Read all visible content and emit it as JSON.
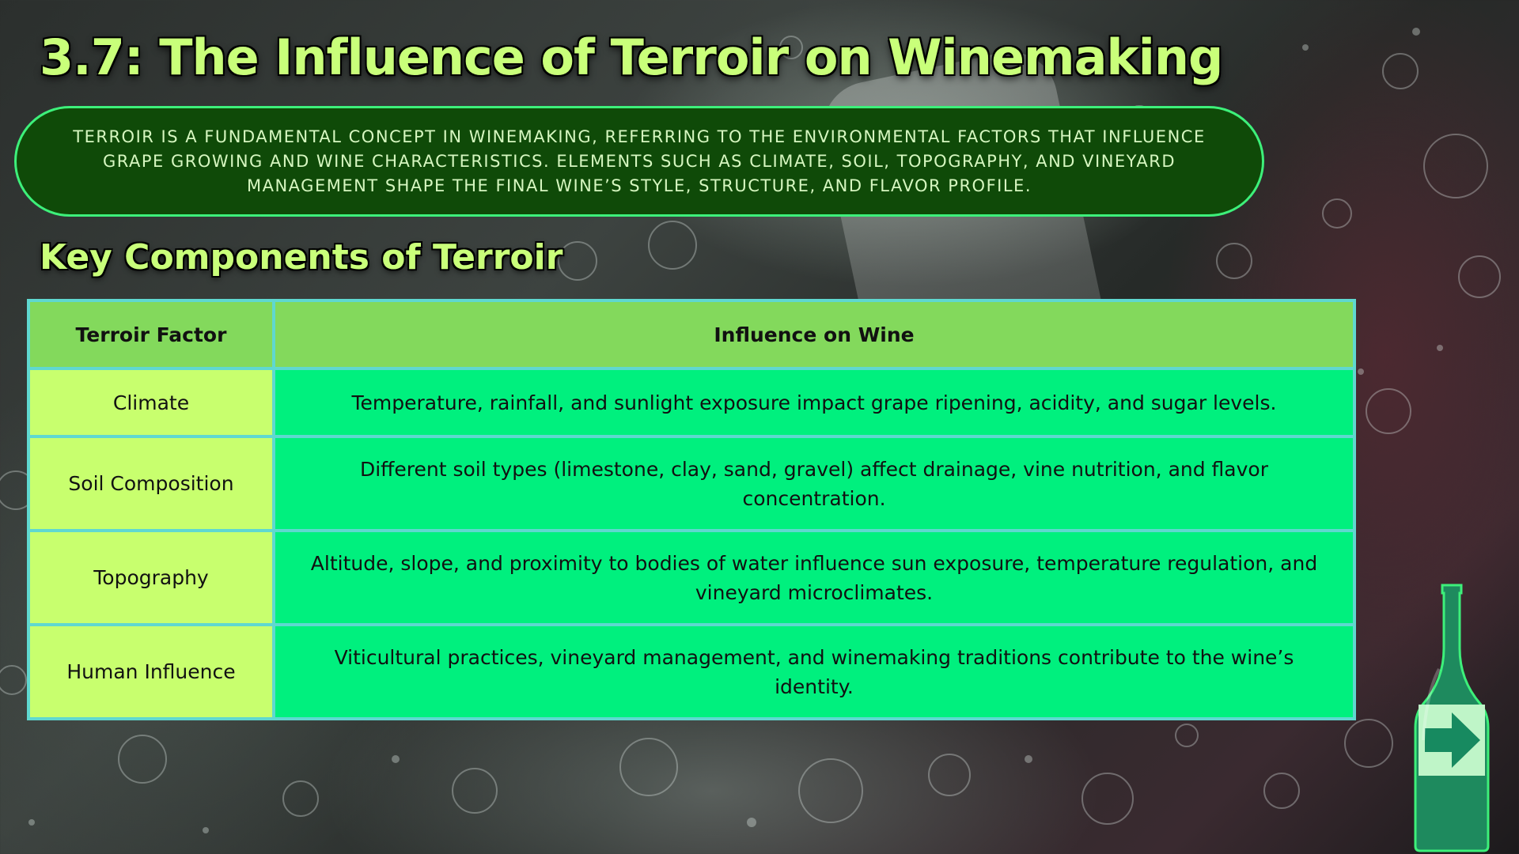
{
  "slide": {
    "title": "3.7: The Influence of Terroir on Winemaking",
    "intro": "Terroir is a fundamental concept in winemaking, referring to the environmental factors that influence grape growing and wine characteristics. Elements such as climate, soil, topography, and vineyard management shape the final wine’s style, structure, and flavor profile.",
    "subtitle": "Key Components of Terroir"
  },
  "table": {
    "headers": [
      "Terroir Factor",
      "Influence on Wine"
    ],
    "rows": [
      {
        "factor": "Climate",
        "influence": "Temperature, rainfall, and sunlight exposure impact grape ripening, acidity, and sugar levels."
      },
      {
        "factor": "Soil Composition",
        "influence": "Different soil types (limestone, clay, sand, gravel) affect drainage, vine nutrition, and flavor concentration."
      },
      {
        "factor": "Topography",
        "influence": "Altitude, slope, and proximity to bodies of water influence sun exposure, temperature regulation, and vineyard microclimates."
      },
      {
        "factor": "Human Influence",
        "influence": "Viticultural practices, vineyard management, and winemaking traditions contribute to the wine’s identity."
      }
    ]
  },
  "navigation": {
    "next_icon": "arrow-right-icon"
  },
  "colors": {
    "title": "#c9ff7a",
    "intro_bg": "#0f4a08",
    "intro_border": "#3df07a",
    "header_bg": "#83d95c",
    "factor_bg": "#c8ff6e",
    "influence_bg": "#00f07e",
    "table_border": "#5fd8d0",
    "bottle": "#1e8a5e"
  }
}
